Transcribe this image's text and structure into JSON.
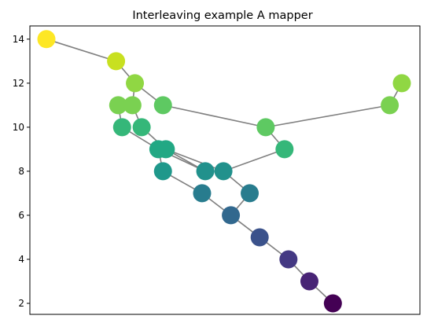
{
  "chart_data": {
    "type": "scatter",
    "title": "Interleaving example A mapper",
    "xlabel": "",
    "ylabel": "",
    "ylim": [
      1.5,
      14.6
    ],
    "xlim": [
      0,
      1
    ],
    "x_ticks_shown": false,
    "y_ticks": [
      2,
      4,
      6,
      8,
      10,
      12,
      14
    ],
    "grid": false,
    "edge_color": "#808080",
    "colormap": "viridis",
    "nodes": [
      {
        "id": 0,
        "x": 0.0,
        "y": 14,
        "color": "#fde725"
      },
      {
        "id": 1,
        "x": 0.196,
        "y": 13,
        "color": "#c8e020"
      },
      {
        "id": 2,
        "x": 0.249,
        "y": 12,
        "color": "#90d743"
      },
      {
        "id": 3,
        "x": 0.202,
        "y": 11,
        "color": "#7ad151"
      },
      {
        "id": 4,
        "x": 0.242,
        "y": 11,
        "color": "#7ad151"
      },
      {
        "id": 5,
        "x": 0.328,
        "y": 11,
        "color": "#5ec962"
      },
      {
        "id": 6,
        "x": 0.213,
        "y": 10,
        "color": "#35b779"
      },
      {
        "id": 7,
        "x": 0.268,
        "y": 10,
        "color": "#35b779"
      },
      {
        "id": 8,
        "x": 0.315,
        "y": 9,
        "color": "#22a884"
      },
      {
        "id": 9,
        "x": 0.336,
        "y": 9,
        "color": "#22a884"
      },
      {
        "id": 10,
        "x": 0.328,
        "y": 8,
        "color": "#1f988b"
      },
      {
        "id": 11,
        "x": 0.447,
        "y": 8,
        "color": "#21918c"
      },
      {
        "id": 12,
        "x": 0.498,
        "y": 8,
        "color": "#21918c"
      },
      {
        "id": 13,
        "x": 0.617,
        "y": 10,
        "color": "#5ec962"
      },
      {
        "id": 14,
        "x": 0.67,
        "y": 9,
        "color": "#35b779"
      },
      {
        "id": 15,
        "x": 0.438,
        "y": 7,
        "color": "#287c8e"
      },
      {
        "id": 16,
        "x": 0.572,
        "y": 7,
        "color": "#287c8e"
      },
      {
        "id": 17,
        "x": 0.519,
        "y": 6,
        "color": "#31688e"
      },
      {
        "id": 18,
        "x": 0.6,
        "y": 5,
        "color": "#3b528b"
      },
      {
        "id": 19,
        "x": 0.681,
        "y": 4,
        "color": "#443983"
      },
      {
        "id": 20,
        "x": 0.74,
        "y": 3,
        "color": "#482475"
      },
      {
        "id": 21,
        "x": 0.806,
        "y": 2,
        "color": "#440154"
      },
      {
        "id": 22,
        "x": 0.966,
        "y": 11,
        "color": "#7ad151"
      },
      {
        "id": 23,
        "x": 1.0,
        "y": 12,
        "color": "#90d743"
      }
    ],
    "edges": [
      [
        0,
        1
      ],
      [
        1,
        2
      ],
      [
        2,
        4
      ],
      [
        2,
        5
      ],
      [
        4,
        3
      ],
      [
        3,
        6
      ],
      [
        4,
        7
      ],
      [
        6,
        8
      ],
      [
        7,
        9
      ],
      [
        8,
        10
      ],
      [
        8,
        11
      ],
      [
        9,
        11
      ],
      [
        9,
        12
      ],
      [
        12,
        14
      ],
      [
        14,
        13
      ],
      [
        5,
        13
      ],
      [
        13,
        22
      ],
      [
        22,
        23
      ],
      [
        10,
        15
      ],
      [
        15,
        17
      ],
      [
        12,
        16
      ],
      [
        16,
        17
      ],
      [
        17,
        18
      ],
      [
        18,
        19
      ],
      [
        19,
        20
      ],
      [
        20,
        21
      ]
    ]
  }
}
